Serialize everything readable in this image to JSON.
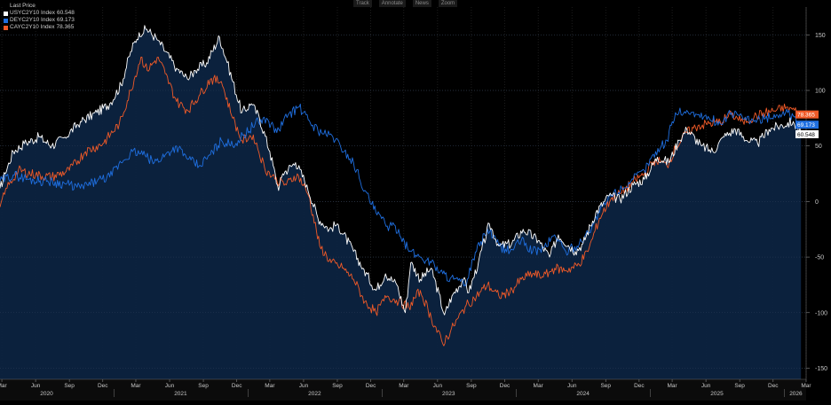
{
  "toolbar": {
    "track": "Track",
    "annotate": "Annotate",
    "news": "News",
    "zoom": "Zoom"
  },
  "legend": {
    "header": "Last Price",
    "items": [
      {
        "label": "USYC2Y10 Index",
        "value": "60.548",
        "color": "#ffffff"
      },
      {
        "label": "DEYC2Y10 Index",
        "value": "69.173",
        "color": "#1f6fe0"
      },
      {
        "label": "CAYC2Y10 Index",
        "value": "78.365",
        "color": "#f05a28"
      }
    ]
  },
  "chart_data": {
    "type": "line",
    "ylim": [
      -160,
      175
    ],
    "yticks": [
      150,
      100,
      50,
      0,
      -50,
      -100,
      -150
    ],
    "xlim": [
      "2020-02-25",
      "2026-03-01"
    ],
    "grid": true,
    "legend_position": "top-left",
    "month_ticks": [
      {
        "label": "Mar",
        "date": "2020-03-01"
      },
      {
        "label": "Jun",
        "date": "2020-06-01"
      },
      {
        "label": "Sep",
        "date": "2020-09-01"
      },
      {
        "label": "Dec",
        "date": "2020-12-01"
      },
      {
        "label": "Mar",
        "date": "2021-03-01"
      },
      {
        "label": "Jun",
        "date": "2021-06-01"
      },
      {
        "label": "Sep",
        "date": "2021-09-01"
      },
      {
        "label": "Dec",
        "date": "2021-12-01"
      },
      {
        "label": "Mar",
        "date": "2022-03-01"
      },
      {
        "label": "Jun",
        "date": "2022-06-01"
      },
      {
        "label": "Sep",
        "date": "2022-09-01"
      },
      {
        "label": "Dec",
        "date": "2022-12-01"
      },
      {
        "label": "Mar",
        "date": "2023-03-01"
      },
      {
        "label": "Jun",
        "date": "2023-06-01"
      },
      {
        "label": "Sep",
        "date": "2023-09-01"
      },
      {
        "label": "Dec",
        "date": "2023-12-01"
      },
      {
        "label": "Mar",
        "date": "2024-03-01"
      },
      {
        "label": "Jun",
        "date": "2024-06-01"
      },
      {
        "label": "Sep",
        "date": "2024-09-01"
      },
      {
        "label": "Dec",
        "date": "2024-12-01"
      },
      {
        "label": "Mar",
        "date": "2025-03-01"
      },
      {
        "label": "Jun",
        "date": "2025-06-01"
      },
      {
        "label": "Sep",
        "date": "2025-09-01"
      },
      {
        "label": "Dec",
        "date": "2025-12-01"
      },
      {
        "label": "Mar",
        "date": "2026-03-01"
      }
    ],
    "year_ticks": [
      {
        "label": "2020",
        "date": "2020-07-01"
      },
      {
        "label": "2021",
        "date": "2021-07-01"
      },
      {
        "label": "2022",
        "date": "2022-07-01"
      },
      {
        "label": "2023",
        "date": "2023-07-01"
      },
      {
        "label": "2024",
        "date": "2024-07-01"
      },
      {
        "label": "2025",
        "date": "2025-07-01"
      },
      {
        "label": "2026",
        "date": "2026-02-01"
      }
    ],
    "series": [
      {
        "name": "USYC2Y10 Index",
        "color": "#ffffff",
        "last": 60.548,
        "points": [
          [
            "2020-02-25",
            12
          ],
          [
            "2020-03-10",
            25
          ],
          [
            "2020-04-01",
            45
          ],
          [
            "2020-05-01",
            52
          ],
          [
            "2020-06-10",
            58
          ],
          [
            "2020-07-15",
            50
          ],
          [
            "2020-08-20",
            58
          ],
          [
            "2020-10-01",
            72
          ],
          [
            "2020-11-15",
            80
          ],
          [
            "2020-12-20",
            88
          ],
          [
            "2021-01-20",
            105
          ],
          [
            "2021-02-15",
            135
          ],
          [
            "2021-03-10",
            152
          ],
          [
            "2021-03-31",
            155
          ],
          [
            "2021-05-01",
            145
          ],
          [
            "2021-05-20",
            135
          ],
          [
            "2021-06-20",
            120
          ],
          [
            "2021-07-20",
            110
          ],
          [
            "2021-08-10",
            118
          ],
          [
            "2021-09-10",
            125
          ],
          [
            "2021-10-15",
            148
          ],
          [
            "2021-11-05",
            125
          ],
          [
            "2021-12-15",
            80
          ],
          [
            "2022-01-10",
            88
          ],
          [
            "2022-02-01",
            75
          ],
          [
            "2022-03-01",
            45
          ],
          [
            "2022-03-25",
            10
          ],
          [
            "2022-04-05",
            25
          ],
          [
            "2022-05-10",
            35
          ],
          [
            "2022-06-10",
            15
          ],
          [
            "2022-07-10",
            -15
          ],
          [
            "2022-08-10",
            -25
          ],
          [
            "2022-09-01",
            -20
          ],
          [
            "2022-10-15",
            -45
          ],
          [
            "2022-11-10",
            -60
          ],
          [
            "2022-12-15",
            -80
          ],
          [
            "2023-01-10",
            -65
          ],
          [
            "2023-02-10",
            -75
          ],
          [
            "2023-03-05",
            -100
          ],
          [
            "2023-03-20",
            -55
          ],
          [
            "2023-04-15",
            -70
          ],
          [
            "2023-05-15",
            -60
          ],
          [
            "2023-06-20",
            -102
          ],
          [
            "2023-07-10",
            -85
          ],
          [
            "2023-08-10",
            -70
          ],
          [
            "2023-08-25",
            -82
          ],
          [
            "2023-09-20",
            -55
          ],
          [
            "2023-10-20",
            -20
          ],
          [
            "2023-11-15",
            -40
          ],
          [
            "2023-12-20",
            -38
          ],
          [
            "2024-01-20",
            -25
          ],
          [
            "2024-03-01",
            -35
          ],
          [
            "2024-04-01",
            -50
          ],
          [
            "2024-04-25",
            -30
          ],
          [
            "2024-06-10",
            -45
          ],
          [
            "2024-07-01",
            -38
          ],
          [
            "2024-08-05",
            -10
          ],
          [
            "2024-09-10",
            5
          ],
          [
            "2024-10-10",
            2
          ],
          [
            "2024-11-15",
            15
          ],
          [
            "2024-12-15",
            20
          ],
          [
            "2025-01-20",
            40
          ],
          [
            "2025-02-20",
            35
          ],
          [
            "2025-03-20",
            55
          ],
          [
            "2025-04-10",
            65
          ],
          [
            "2025-05-20",
            50
          ],
          [
            "2025-06-20",
            45
          ],
          [
            "2025-07-20",
            58
          ],
          [
            "2025-08-20",
            65
          ],
          [
            "2025-09-20",
            55
          ],
          [
            "2025-10-20",
            52
          ],
          [
            "2025-11-20",
            65
          ],
          [
            "2025-12-20",
            68
          ],
          [
            "2026-01-25",
            72
          ],
          [
            "2026-02-15",
            60.548
          ]
        ]
      },
      {
        "name": "DEYC2Y10 Index",
        "color": "#1f6fe0",
        "last": 69.173,
        "points": [
          [
            "2020-02-25",
            18
          ],
          [
            "2020-04-01",
            24
          ],
          [
            "2020-05-15",
            20
          ],
          [
            "2020-07-01",
            18
          ],
          [
            "2020-08-20",
            16
          ],
          [
            "2020-10-01",
            12
          ],
          [
            "2020-11-15",
            18
          ],
          [
            "2020-12-20",
            22
          ],
          [
            "2021-01-20",
            35
          ],
          [
            "2021-02-20",
            45
          ],
          [
            "2021-03-20",
            42
          ],
          [
            "2021-04-20",
            35
          ],
          [
            "2021-05-20",
            42
          ],
          [
            "2021-06-20",
            50
          ],
          [
            "2021-07-20",
            38
          ],
          [
            "2021-08-20",
            32
          ],
          [
            "2021-09-20",
            42
          ],
          [
            "2021-10-20",
            55
          ],
          [
            "2021-11-20",
            50
          ],
          [
            "2021-12-20",
            60
          ],
          [
            "2022-01-20",
            70
          ],
          [
            "2022-02-20",
            75
          ],
          [
            "2022-03-20",
            62
          ],
          [
            "2022-04-20",
            78
          ],
          [
            "2022-05-20",
            85
          ],
          [
            "2022-06-20",
            70
          ],
          [
            "2022-07-20",
            62
          ],
          [
            "2022-08-20",
            58
          ],
          [
            "2022-09-20",
            45
          ],
          [
            "2022-10-15",
            35
          ],
          [
            "2022-11-15",
            10
          ],
          [
            "2022-12-15",
            -10
          ],
          [
            "2023-01-15",
            -22
          ],
          [
            "2023-02-15",
            -25
          ],
          [
            "2023-03-15",
            -45
          ],
          [
            "2023-04-15",
            -50
          ],
          [
            "2023-05-15",
            -55
          ],
          [
            "2023-06-15",
            -65
          ],
          [
            "2023-07-15",
            -70
          ],
          [
            "2023-08-15",
            -75
          ],
          [
            "2023-09-15",
            -45
          ],
          [
            "2023-10-15",
            -25
          ],
          [
            "2023-11-15",
            -40
          ],
          [
            "2023-12-15",
            -45
          ],
          [
            "2024-01-15",
            -35
          ],
          [
            "2024-02-15",
            -45
          ],
          [
            "2024-03-15",
            -42
          ],
          [
            "2024-04-15",
            -30
          ],
          [
            "2024-05-15",
            -45
          ],
          [
            "2024-06-15",
            -40
          ],
          [
            "2024-07-15",
            -28
          ],
          [
            "2024-08-15",
            -10
          ],
          [
            "2024-09-15",
            5
          ],
          [
            "2024-10-15",
            12
          ],
          [
            "2024-11-15",
            20
          ],
          [
            "2024-12-15",
            28
          ],
          [
            "2025-01-15",
            45
          ],
          [
            "2025-02-15",
            55
          ],
          [
            "2025-03-10",
            80
          ],
          [
            "2025-04-10",
            82
          ],
          [
            "2025-05-10",
            78
          ],
          [
            "2025-06-10",
            75
          ],
          [
            "2025-07-10",
            70
          ],
          [
            "2025-08-10",
            80
          ],
          [
            "2025-09-10",
            74
          ],
          [
            "2025-10-10",
            72
          ],
          [
            "2025-11-10",
            75
          ],
          [
            "2025-12-10",
            78
          ],
          [
            "2026-01-10",
            80
          ],
          [
            "2026-02-15",
            69.173
          ]
        ]
      },
      {
        "name": "CAYC2Y10 Index",
        "color": "#f05a28",
        "last": 78.365,
        "points": [
          [
            "2020-02-25",
            -5
          ],
          [
            "2020-03-15",
            12
          ],
          [
            "2020-04-15",
            28
          ],
          [
            "2020-06-01",
            24
          ],
          [
            "2020-07-15",
            22
          ],
          [
            "2020-09-01",
            28
          ],
          [
            "2020-10-15",
            45
          ],
          [
            "2020-12-01",
            52
          ],
          [
            "2021-01-15",
            70
          ],
          [
            "2021-02-15",
            100
          ],
          [
            "2021-03-15",
            130
          ],
          [
            "2021-04-01",
            118
          ],
          [
            "2021-05-01",
            130
          ],
          [
            "2021-05-20",
            115
          ],
          [
            "2021-06-20",
            90
          ],
          [
            "2021-07-20",
            82
          ],
          [
            "2021-08-20",
            95
          ],
          [
            "2021-09-20",
            110
          ],
          [
            "2021-10-20",
            108
          ],
          [
            "2021-11-20",
            75
          ],
          [
            "2021-12-15",
            55
          ],
          [
            "2022-01-15",
            60
          ],
          [
            "2022-02-15",
            30
          ],
          [
            "2022-03-15",
            20
          ],
          [
            "2022-04-15",
            15
          ],
          [
            "2022-05-15",
            25
          ],
          [
            "2022-06-15",
            5
          ],
          [
            "2022-07-15",
            -40
          ],
          [
            "2022-08-15",
            -55
          ],
          [
            "2022-09-15",
            -60
          ],
          [
            "2022-10-15",
            -70
          ],
          [
            "2022-11-15",
            -90
          ],
          [
            "2022-12-15",
            -100
          ],
          [
            "2023-01-15",
            -85
          ],
          [
            "2023-02-15",
            -90
          ],
          [
            "2023-03-15",
            -95
          ],
          [
            "2023-04-15",
            -80
          ],
          [
            "2023-05-15",
            -105
          ],
          [
            "2023-06-15",
            -128
          ],
          [
            "2023-07-15",
            -112
          ],
          [
            "2023-08-15",
            -95
          ],
          [
            "2023-09-15",
            -85
          ],
          [
            "2023-10-15",
            -75
          ],
          [
            "2023-11-15",
            -85
          ],
          [
            "2023-12-15",
            -82
          ],
          [
            "2024-01-15",
            -70
          ],
          [
            "2024-02-15",
            -65
          ],
          [
            "2024-03-15",
            -68
          ],
          [
            "2024-04-15",
            -60
          ],
          [
            "2024-05-15",
            -62
          ],
          [
            "2024-06-15",
            -58
          ],
          [
            "2024-07-15",
            -45
          ],
          [
            "2024-08-15",
            -15
          ],
          [
            "2024-09-15",
            2
          ],
          [
            "2024-10-15",
            8
          ],
          [
            "2024-11-15",
            18
          ],
          [
            "2024-12-15",
            25
          ],
          [
            "2025-01-15",
            38
          ],
          [
            "2025-02-15",
            32
          ],
          [
            "2025-03-10",
            48
          ],
          [
            "2025-04-10",
            62
          ],
          [
            "2025-05-10",
            68
          ],
          [
            "2025-06-10",
            70
          ],
          [
            "2025-07-10",
            72
          ],
          [
            "2025-08-10",
            78
          ],
          [
            "2025-09-10",
            72
          ],
          [
            "2025-10-10",
            76
          ],
          [
            "2025-11-10",
            80
          ],
          [
            "2025-12-10",
            82
          ],
          [
            "2026-01-10",
            85
          ],
          [
            "2026-02-15",
            78.365
          ]
        ]
      }
    ]
  }
}
